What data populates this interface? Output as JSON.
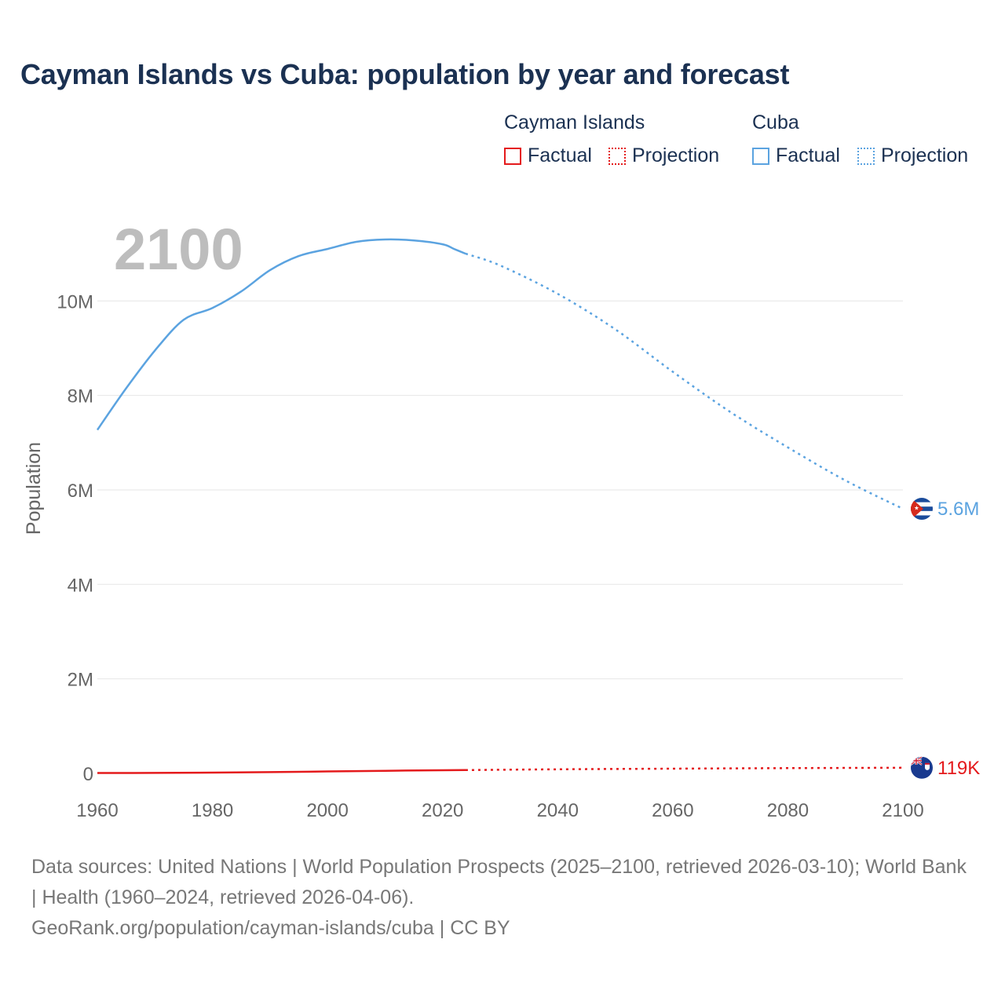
{
  "title": "Cayman Islands vs Cuba: population by year and forecast",
  "legend": {
    "groups": [
      {
        "name": "Cayman Islands",
        "factual_label": "Factual",
        "projection_label": "Projection",
        "color": "#e41a1c"
      },
      {
        "name": "Cuba",
        "factual_label": "Factual",
        "projection_label": "Projection",
        "color": "#5ba3e0"
      }
    ]
  },
  "year_display": "2100",
  "footer": {
    "sources": "Data sources: United Nations | World Population Prospects (2025–2100, retrieved 2026-03-10); World Bank | Health (1960–2024, retrieved 2026-04-06).",
    "url": "GeoRank.org/population/cayman-islands/cuba | CC BY"
  },
  "chart_data": {
    "type": "line",
    "title": "Cayman Islands vs Cuba: population by year and forecast",
    "xlabel": "",
    "ylabel": "Population",
    "xlim": [
      1960,
      2100
    ],
    "ylim": [
      0,
      11500000
    ],
    "x_ticks": [
      1960,
      1980,
      2000,
      2020,
      2040,
      2060,
      2080,
      2100
    ],
    "x_tick_labels": [
      "1960",
      "1980",
      "2000",
      "2020",
      "2040",
      "2060",
      "2080",
      "2100"
    ],
    "y_ticks": [
      0,
      2000000,
      4000000,
      6000000,
      8000000,
      10000000
    ],
    "y_tick_labels": [
      "0",
      "2M",
      "4M",
      "6M",
      "8M",
      "10M"
    ],
    "projection_start": 2024,
    "series": [
      {
        "name": "Cuba",
        "color": "#5ba3e0",
        "end_label": "5.6M",
        "flag": "cuba-flag-icon",
        "factual": {
          "x": [
            1960,
            1965,
            1970,
            1975,
            1980,
            1985,
            1990,
            1995,
            2000,
            2005,
            2010,
            2015,
            2020,
            2022,
            2024
          ],
          "y": [
            7270000,
            8150000,
            8950000,
            9600000,
            9850000,
            10200000,
            10650000,
            10950000,
            11100000,
            11250000,
            11300000,
            11280000,
            11200000,
            11100000,
            11000000
          ]
        },
        "projection": {
          "x": [
            2024,
            2030,
            2040,
            2050,
            2060,
            2070,
            2080,
            2090,
            2100
          ],
          "y": [
            11000000,
            10750000,
            10150000,
            9400000,
            8500000,
            7650000,
            6900000,
            6200000,
            5600000
          ]
        }
      },
      {
        "name": "Cayman Islands",
        "color": "#e41a1c",
        "end_label": "119K",
        "flag": "cayman-islands-flag-icon",
        "factual": {
          "x": [
            1960,
            1970,
            1980,
            1990,
            2000,
            2010,
            2020,
            2024
          ],
          "y": [
            8000,
            10000,
            17000,
            26000,
            41000,
            55000,
            66000,
            70000
          ]
        },
        "projection": {
          "x": [
            2024,
            2040,
            2060,
            2080,
            2100
          ],
          "y": [
            70000,
            86000,
            100000,
            111000,
            119000
          ]
        }
      }
    ]
  }
}
